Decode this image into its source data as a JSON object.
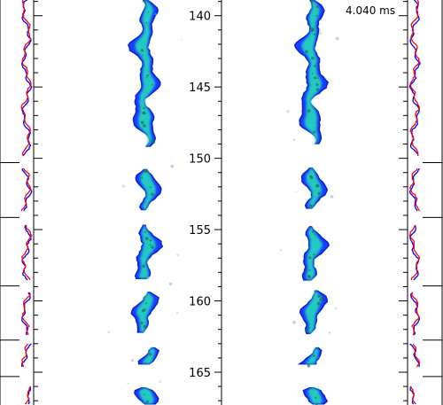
{
  "chart_data": {
    "type": "image-panels",
    "time_label": "4.040 ms",
    "y_axis": {
      "ticks": [
        140,
        145,
        150,
        155,
        160,
        165
      ],
      "range": [
        138.9,
        167.3
      ],
      "minor_step": 1,
      "inverted": true
    },
    "spray_columns": [
      {
        "side": "left",
        "blobs": [
          {
            "y0": 138.9,
            "y1": 149.2,
            "center": 0.0
          },
          {
            "y0": 150.8,
            "y1": 153.6,
            "center": 0.05
          },
          {
            "y0": 154.7,
            "y1": 158.6,
            "center": 0.0
          },
          {
            "y0": 159.4,
            "y1": 162.3,
            "center": -0.05
          },
          {
            "y0": 163.3,
            "y1": 164.5,
            "center": 0.1
          },
          {
            "y0": 166.1,
            "y1": 167.3,
            "center": -0.1
          }
        ]
      },
      {
        "side": "right",
        "blobs": [
          {
            "y0": 138.9,
            "y1": 149.1,
            "center": 0.0
          },
          {
            "y0": 150.7,
            "y1": 153.6,
            "center": 0.0
          },
          {
            "y0": 154.8,
            "y1": 158.6,
            "center": 0.0
          },
          {
            "y0": 159.3,
            "y1": 162.3,
            "center": 0.05
          },
          {
            "y0": 163.3,
            "y1": 164.6,
            "center": -0.05
          },
          {
            "y0": 166.1,
            "y1": 167.3,
            "center": 0.0
          }
        ]
      }
    ],
    "profile_series": [
      {
        "color": "#0000ff"
      },
      {
        "color": "#ff0000"
      }
    ],
    "gaps": [
      [
        149.9,
        150.7
      ],
      [
        153.7,
        154.6
      ],
      [
        158.6,
        159.3
      ],
      [
        162.5,
        163.0
      ],
      [
        164.7,
        165.9
      ]
    ]
  }
}
